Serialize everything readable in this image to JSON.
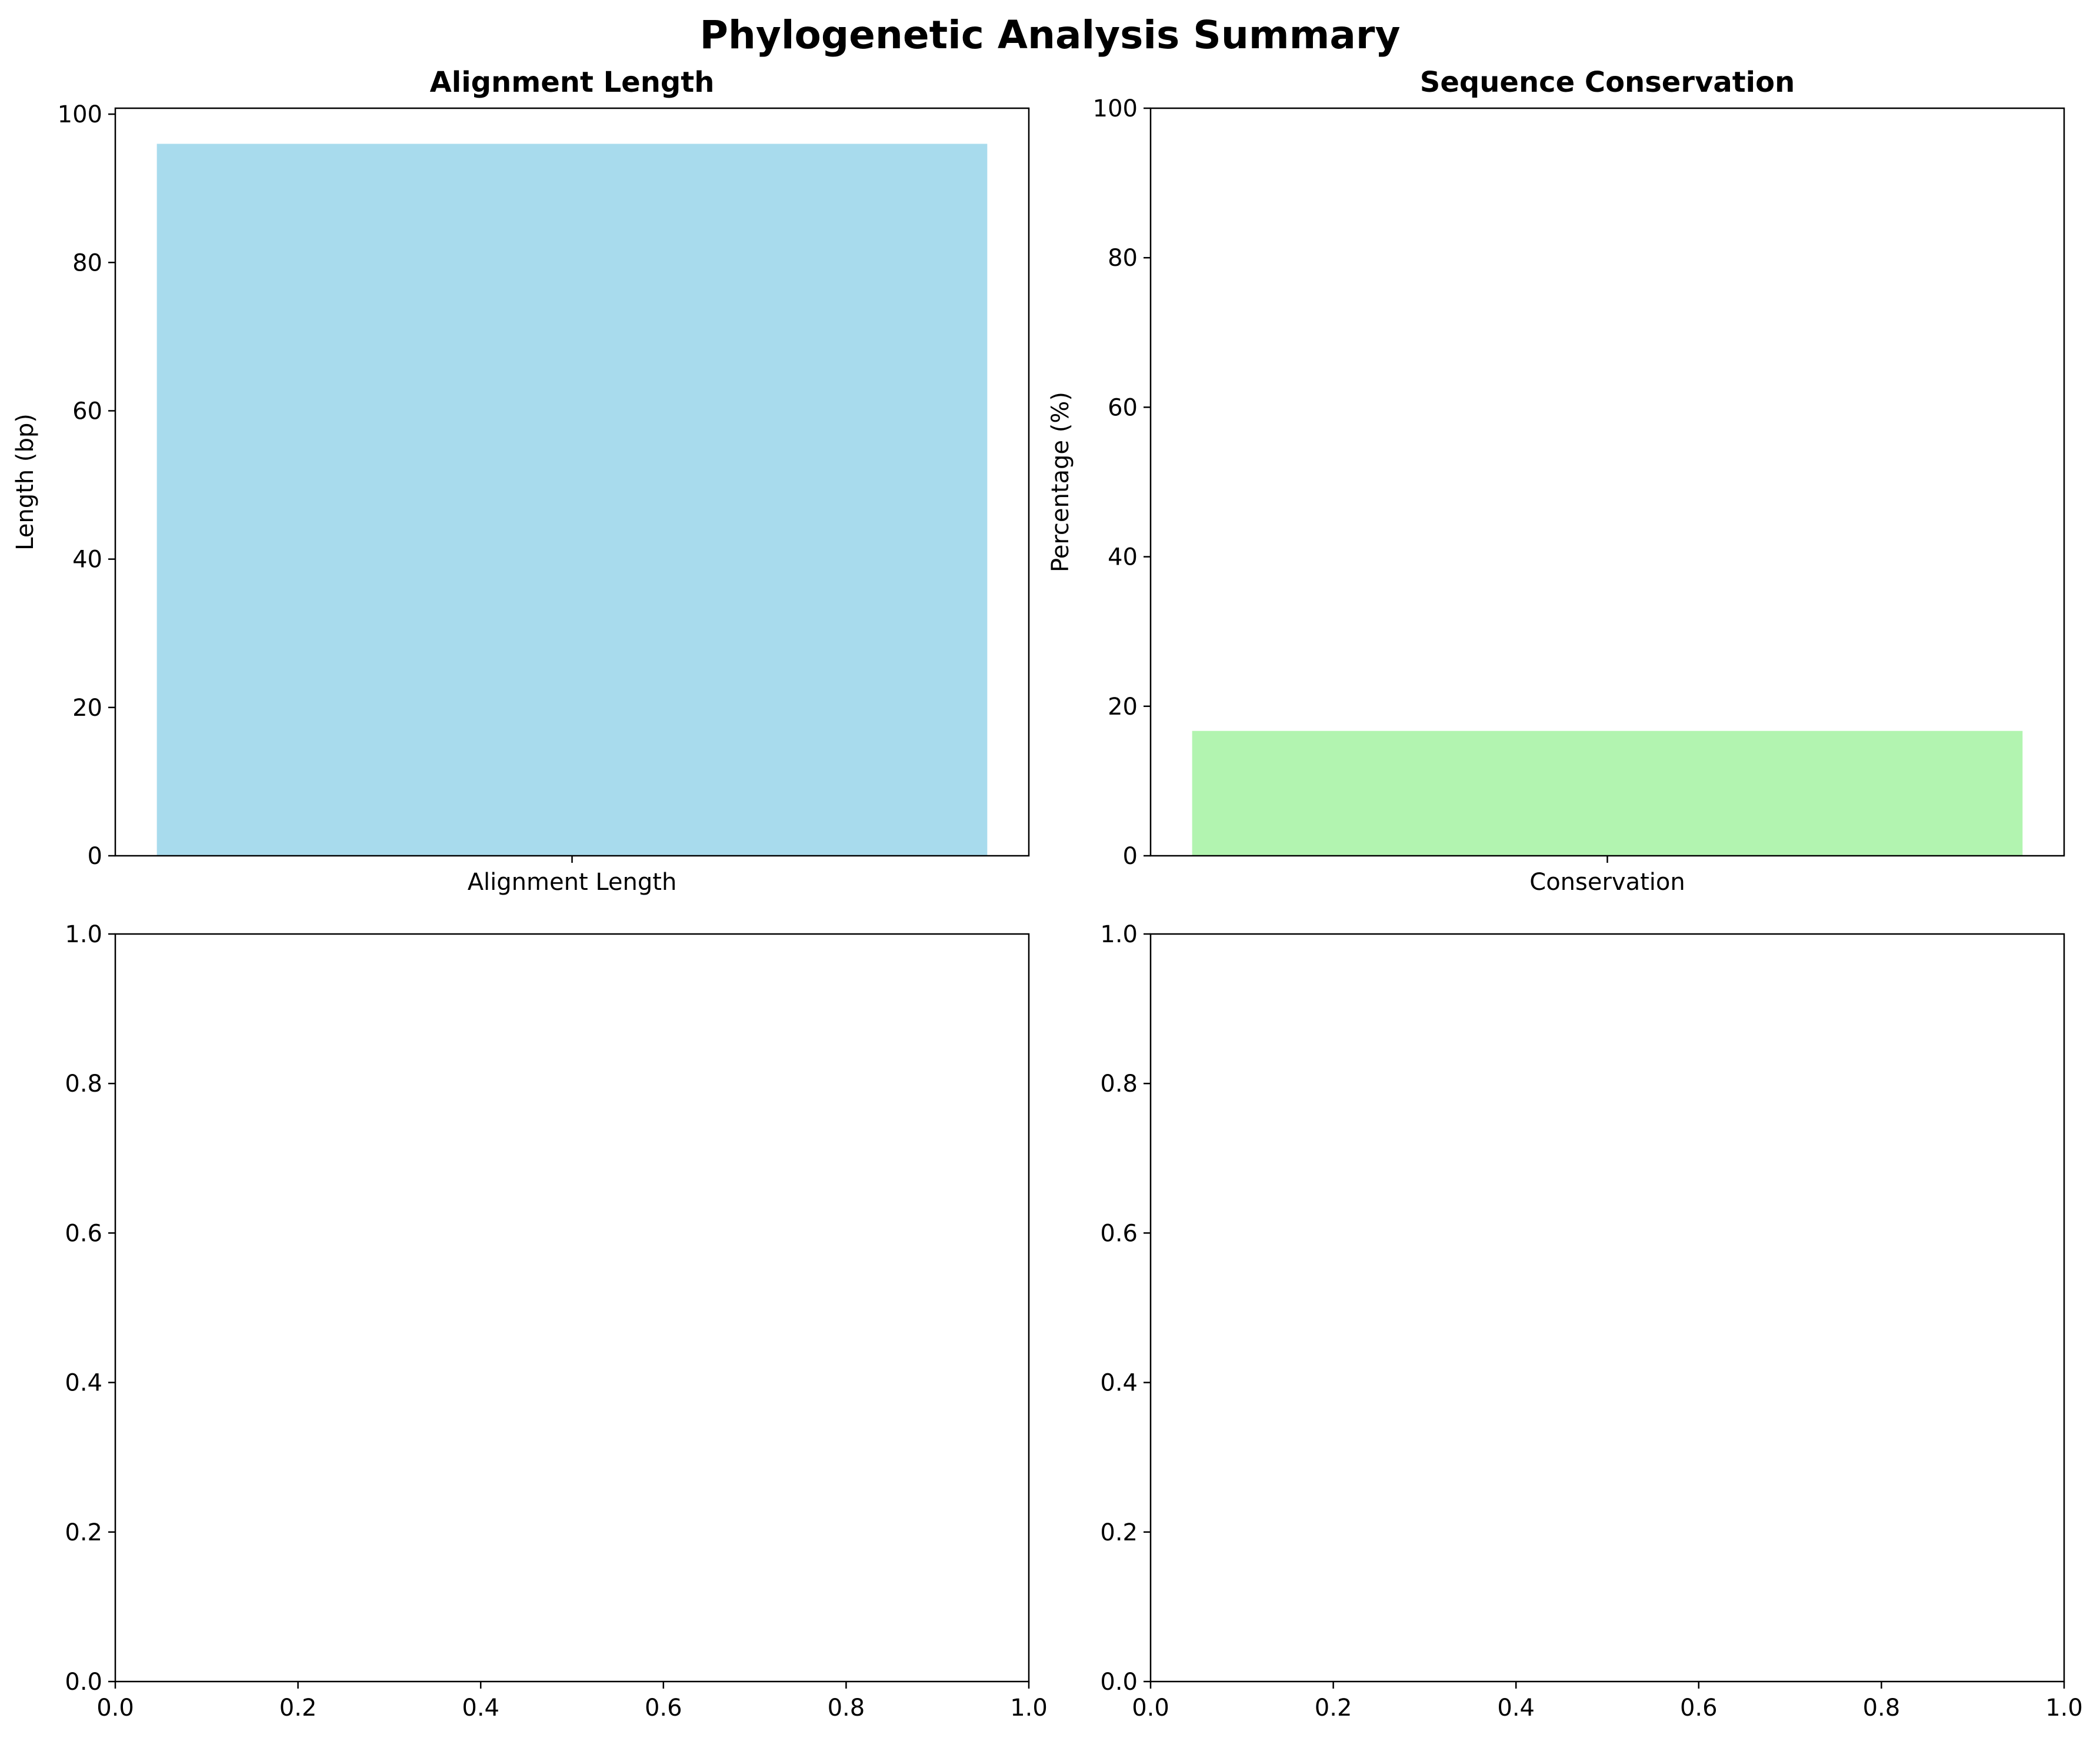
{
  "figure": {
    "suptitle": "Phylogenetic Analysis Summary"
  },
  "chart_data": [
    {
      "type": "bar",
      "title": "Alignment Length",
      "categories": [
        "Alignment Length"
      ],
      "values": [
        96
      ],
      "xlabel": "",
      "ylabel": "Length (bp)",
      "ylim": [
        0,
        100.8
      ],
      "yticks": [
        "0",
        "20",
        "40",
        "60",
        "80",
        "100"
      ],
      "color": "#a8dbed",
      "grid": false
    },
    {
      "type": "bar",
      "title": "Sequence Conservation",
      "categories": [
        "Conservation"
      ],
      "values": [
        16.7
      ],
      "xlabel": "",
      "ylabel": "Percentage (%)",
      "ylim": [
        0,
        100
      ],
      "yticks": [
        "0",
        "20",
        "40",
        "60",
        "80",
        "100"
      ],
      "color": "#b2f4b0",
      "grid": false
    },
    {
      "type": "bar",
      "title": "",
      "categories": [],
      "values": [],
      "xlim": [
        0,
        1
      ],
      "ylim": [
        0,
        1
      ],
      "xticks": [
        "0.0",
        "0.2",
        "0.4",
        "0.6",
        "0.8",
        "1.0"
      ],
      "yticks": [
        "0.0",
        "0.2",
        "0.4",
        "0.6",
        "0.8",
        "1.0"
      ],
      "grid": false
    },
    {
      "type": "bar",
      "title": "",
      "categories": [],
      "values": [],
      "xlim": [
        0,
        1
      ],
      "ylim": [
        0,
        1
      ],
      "xticks": [
        "0.0",
        "0.2",
        "0.4",
        "0.6",
        "0.8",
        "1.0"
      ],
      "yticks": [
        "0.0",
        "0.2",
        "0.4",
        "0.6",
        "0.8",
        "1.0"
      ],
      "grid": false
    }
  ]
}
